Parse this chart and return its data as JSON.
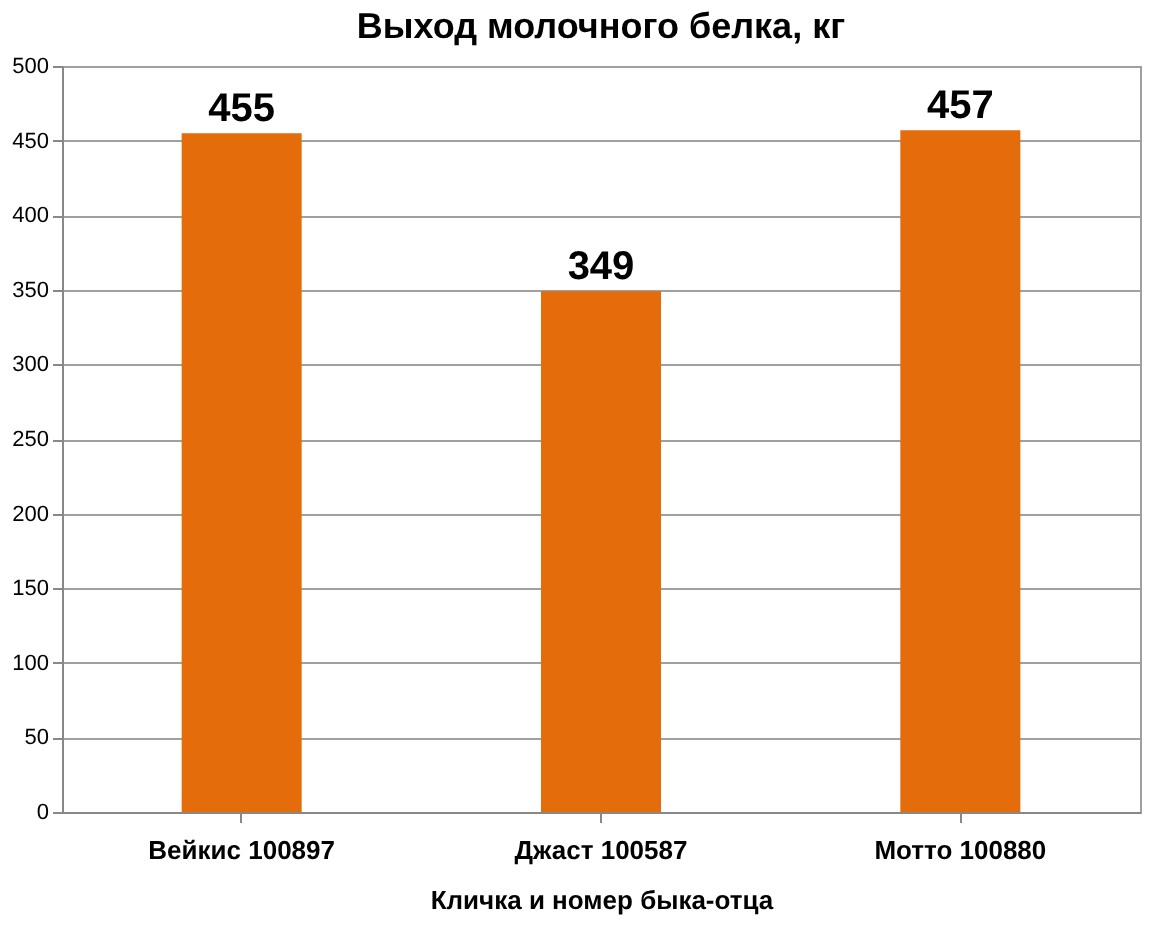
{
  "chart_data": {
    "type": "bar",
    "title": "Выход молочного белка, кг",
    "xlabel": "Кличка и номер быка-отца",
    "categories": [
      "Вейкис 100897",
      "Джаст 100587",
      "Мотто 100880"
    ],
    "values": [
      455,
      349,
      457
    ],
    "color": "#e46c0a",
    "ylim": [
      0,
      500
    ],
    "yticks": [
      0,
      50,
      100,
      150,
      200,
      250,
      300,
      350,
      400,
      450,
      500
    ],
    "grid": "y",
    "data_labels": true
  }
}
